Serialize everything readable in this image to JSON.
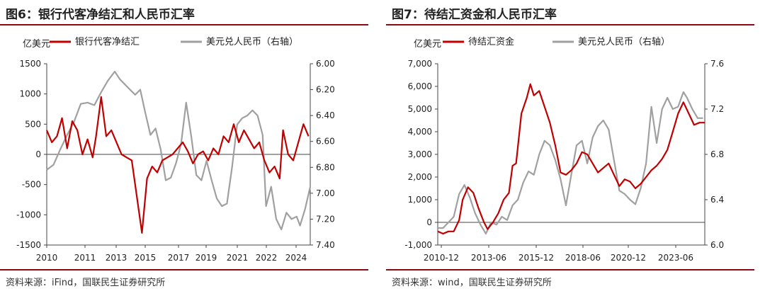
{
  "chart_data": [
    {
      "id": "fig6",
      "type": "line",
      "title": "图6：银行代客净结汇和人民币汇率",
      "source": "资料来源：iFind，国联民生证券研究所",
      "ylabel_left": "亿美元",
      "legend": [
        "银行代客净结汇",
        "美元兑人民币（右轴）"
      ],
      "x_ticks": [
        "2010",
        "2011",
        "2013",
        "2015",
        "2017",
        "2019",
        "2021",
        "2022",
        "2024"
      ],
      "left_axis": {
        "ticks": [
          "1500",
          "1000",
          "500",
          "0",
          "-500",
          "-1000",
          "-1500"
        ],
        "min": -1500,
        "max": 1500
      },
      "right_axis": {
        "ticks": [
          "6.00",
          "6.20",
          "6.40",
          "6.60",
          "6.80",
          "7.00",
          "7.20",
          "7.40"
        ],
        "min": 6.0,
        "max": 7.4,
        "inverted": true
      },
      "x_range": [
        2010.0,
        2025.5
      ],
      "series": [
        {
          "name": "银行代客净结汇",
          "color": "#c00000",
          "axis": "left",
          "points": [
            [
              2010.0,
              400
            ],
            [
              2010.3,
              200
            ],
            [
              2010.6,
              300
            ],
            [
              2010.9,
              600
            ],
            [
              2011.2,
              100
            ],
            [
              2011.5,
              550
            ],
            [
              2011.8,
              400
            ],
            [
              2012.1,
              0
            ],
            [
              2012.4,
              250
            ],
            [
              2012.7,
              -50
            ],
            [
              2012.9,
              300
            ],
            [
              2013.2,
              950
            ],
            [
              2013.5,
              300
            ],
            [
              2013.8,
              400
            ],
            [
              2014.1,
              200
            ],
            [
              2014.4,
              0
            ],
            [
              2014.7,
              -50
            ],
            [
              2015.0,
              -100
            ],
            [
              2015.3,
              -700
            ],
            [
              2015.6,
              -1300
            ],
            [
              2015.9,
              -400
            ],
            [
              2016.2,
              -200
            ],
            [
              2016.5,
              -300
            ],
            [
              2016.8,
              -100
            ],
            [
              2017.1,
              -50
            ],
            [
              2017.4,
              0
            ],
            [
              2017.7,
              100
            ],
            [
              2018.0,
              200
            ],
            [
              2018.3,
              50
            ],
            [
              2018.6,
              -150
            ],
            [
              2018.9,
              0
            ],
            [
              2019.2,
              50
            ],
            [
              2019.5,
              -100
            ],
            [
              2019.8,
              100
            ],
            [
              2020.1,
              0
            ],
            [
              2020.4,
              300
            ],
            [
              2020.7,
              200
            ],
            [
              2021.0,
              500
            ],
            [
              2021.3,
              200
            ],
            [
              2021.6,
              400
            ],
            [
              2021.9,
              250
            ],
            [
              2022.2,
              100
            ],
            [
              2022.5,
              200
            ],
            [
              2022.8,
              -100
            ],
            [
              2023.1,
              -300
            ],
            [
              2023.4,
              -200
            ],
            [
              2023.7,
              -400
            ],
            [
              2023.9,
              400
            ],
            [
              2024.2,
              0
            ],
            [
              2024.5,
              -100
            ],
            [
              2024.8,
              200
            ],
            [
              2025.1,
              500
            ],
            [
              2025.4,
              300
            ]
          ]
        },
        {
          "name": "美元兑人民币（右轴）",
          "color": "#a0a0a0",
          "axis": "right",
          "points": [
            [
              2010.0,
              6.82
            ],
            [
              2010.4,
              6.78
            ],
            [
              2010.8,
              6.66
            ],
            [
              2011.2,
              6.55
            ],
            [
              2011.6,
              6.45
            ],
            [
              2012.0,
              6.31
            ],
            [
              2012.4,
              6.3
            ],
            [
              2012.8,
              6.32
            ],
            [
              2013.2,
              6.22
            ],
            [
              2013.6,
              6.13
            ],
            [
              2014.0,
              6.06
            ],
            [
              2014.3,
              6.12
            ],
            [
              2014.6,
              6.16
            ],
            [
              2014.9,
              6.2
            ],
            [
              2015.2,
              6.24
            ],
            [
              2015.5,
              6.2
            ],
            [
              2015.8,
              6.38
            ],
            [
              2016.1,
              6.55
            ],
            [
              2016.4,
              6.5
            ],
            [
              2016.7,
              6.66
            ],
            [
              2017.0,
              6.9
            ],
            [
              2017.3,
              6.88
            ],
            [
              2017.6,
              6.77
            ],
            [
              2017.9,
              6.62
            ],
            [
              2018.2,
              6.3
            ],
            [
              2018.5,
              6.56
            ],
            [
              2018.8,
              6.86
            ],
            [
              2019.1,
              6.9
            ],
            [
              2019.4,
              6.75
            ],
            [
              2019.7,
              6.9
            ],
            [
              2020.0,
              7.04
            ],
            [
              2020.3,
              7.1
            ],
            [
              2020.6,
              7.08
            ],
            [
              2020.9,
              6.8
            ],
            [
              2021.2,
              6.47
            ],
            [
              2021.5,
              6.42
            ],
            [
              2021.8,
              6.4
            ],
            [
              2022.1,
              6.36
            ],
            [
              2022.4,
              6.4
            ],
            [
              2022.7,
              6.55
            ],
            [
              2022.9,
              7.1
            ],
            [
              2023.2,
              6.95
            ],
            [
              2023.5,
              7.2
            ],
            [
              2023.8,
              7.28
            ],
            [
              2024.1,
              7.15
            ],
            [
              2024.4,
              7.2
            ],
            [
              2024.7,
              7.18
            ],
            [
              2024.9,
              7.25
            ],
            [
              2025.2,
              7.12
            ],
            [
              2025.5,
              6.95
            ]
          ]
        }
      ]
    },
    {
      "id": "fig7",
      "type": "line",
      "title": "图7：待结汇资金和人民币汇率",
      "source": "资料来源：wind，国联民生证券研究所",
      "ylabel_left": "亿美元",
      "legend": [
        "待结汇资金",
        "美元兑人民币（右轴）"
      ],
      "x_ticks": [
        "2010-12",
        "2013-06",
        "2015-12",
        "2018-06",
        "2020-12",
        "2023-06"
      ],
      "left_axis": {
        "ticks": [
          "7,000",
          "6,000",
          "5,000",
          "4,000",
          "3,000",
          "2,000",
          "1,000",
          "0",
          "-1,000"
        ],
        "min": -1000,
        "max": 7000
      },
      "right_axis": {
        "ticks": [
          "7.6",
          "7.2",
          "6.8",
          "6.4",
          "6.0"
        ],
        "min": 6.0,
        "max": 7.6,
        "inverted": false
      },
      "x_range": [
        2010.9,
        2025.9
      ],
      "series": [
        {
          "name": "待结汇资金",
          "color": "#c00000",
          "axis": "left",
          "points": [
            [
              2010.9,
              -400
            ],
            [
              2011.2,
              -500
            ],
            [
              2011.5,
              -400
            ],
            [
              2011.8,
              -400
            ],
            [
              2012.1,
              100
            ],
            [
              2012.3,
              1000
            ],
            [
              2012.6,
              1550
            ],
            [
              2012.9,
              1300
            ],
            [
              2013.2,
              600
            ],
            [
              2013.5,
              0
            ],
            [
              2013.7,
              -300
            ],
            [
              2014.0,
              0
            ],
            [
              2014.3,
              400
            ],
            [
              2014.6,
              1000
            ],
            [
              2014.9,
              1300
            ],
            [
              2015.1,
              2500
            ],
            [
              2015.3,
              2600
            ],
            [
              2015.6,
              4800
            ],
            [
              2015.9,
              5500
            ],
            [
              2016.1,
              6100
            ],
            [
              2016.3,
              5600
            ],
            [
              2016.6,
              5800
            ],
            [
              2016.9,
              5100
            ],
            [
              2017.2,
              4400
            ],
            [
              2017.5,
              3400
            ],
            [
              2017.8,
              2200
            ],
            [
              2018.1,
              2100
            ],
            [
              2018.4,
              2300
            ],
            [
              2018.7,
              2600
            ],
            [
              2019.0,
              3100
            ],
            [
              2019.3,
              3000
            ],
            [
              2019.6,
              2600
            ],
            [
              2019.9,
              2200
            ],
            [
              2020.2,
              2400
            ],
            [
              2020.5,
              2600
            ],
            [
              2020.8,
              2100
            ],
            [
              2021.1,
              1600
            ],
            [
              2021.4,
              1900
            ],
            [
              2021.7,
              1800
            ],
            [
              2022.0,
              1500
            ],
            [
              2022.3,
              1700
            ],
            [
              2022.6,
              2000
            ],
            [
              2022.9,
              2300
            ],
            [
              2023.2,
              2500
            ],
            [
              2023.5,
              2800
            ],
            [
              2023.8,
              3200
            ],
            [
              2024.1,
              4000
            ],
            [
              2024.4,
              4800
            ],
            [
              2024.7,
              5300
            ],
            [
              2025.0,
              4800
            ],
            [
              2025.3,
              4300
            ],
            [
              2025.6,
              4400
            ],
            [
              2025.9,
              4400
            ]
          ]
        },
        {
          "name": "美元兑人民币（右轴）",
          "color": "#a0a0a0",
          "axis": "right",
          "points": [
            [
              2010.9,
              6.15
            ],
            [
              2011.2,
              6.15
            ],
            [
              2011.5,
              6.2
            ],
            [
              2011.8,
              6.25
            ],
            [
              2012.1,
              6.45
            ],
            [
              2012.4,
              6.53
            ],
            [
              2012.7,
              6.42
            ],
            [
              2013.0,
              6.28
            ],
            [
              2013.3,
              6.18
            ],
            [
              2013.6,
              6.1
            ],
            [
              2013.9,
              6.2
            ],
            [
              2014.2,
              6.18
            ],
            [
              2014.5,
              6.25
            ],
            [
              2014.8,
              6.22
            ],
            [
              2015.1,
              6.35
            ],
            [
              2015.4,
              6.4
            ],
            [
              2015.7,
              6.55
            ],
            [
              2016.0,
              6.65
            ],
            [
              2016.3,
              6.62
            ],
            [
              2016.6,
              6.8
            ],
            [
              2016.9,
              6.92
            ],
            [
              2017.2,
              6.88
            ],
            [
              2017.5,
              6.75
            ],
            [
              2017.8,
              6.58
            ],
            [
              2018.1,
              6.35
            ],
            [
              2018.4,
              6.62
            ],
            [
              2018.7,
              6.88
            ],
            [
              2019.0,
              6.92
            ],
            [
              2019.3,
              6.72
            ],
            [
              2019.6,
              6.95
            ],
            [
              2019.9,
              7.05
            ],
            [
              2020.2,
              7.1
            ],
            [
              2020.5,
              7.02
            ],
            [
              2020.8,
              6.75
            ],
            [
              2021.1,
              6.48
            ],
            [
              2021.4,
              6.45
            ],
            [
              2021.7,
              6.4
            ],
            [
              2022.0,
              6.36
            ],
            [
              2022.3,
              6.5
            ],
            [
              2022.6,
              6.72
            ],
            [
              2022.9,
              7.22
            ],
            [
              2023.2,
              6.9
            ],
            [
              2023.5,
              7.2
            ],
            [
              2023.8,
              7.3
            ],
            [
              2024.1,
              7.2
            ],
            [
              2024.4,
              7.22
            ],
            [
              2024.7,
              7.35
            ],
            [
              2024.9,
              7.3
            ],
            [
              2025.2,
              7.2
            ],
            [
              2025.5,
              7.12
            ],
            [
              2025.8,
              7.12
            ]
          ]
        }
      ]
    }
  ]
}
